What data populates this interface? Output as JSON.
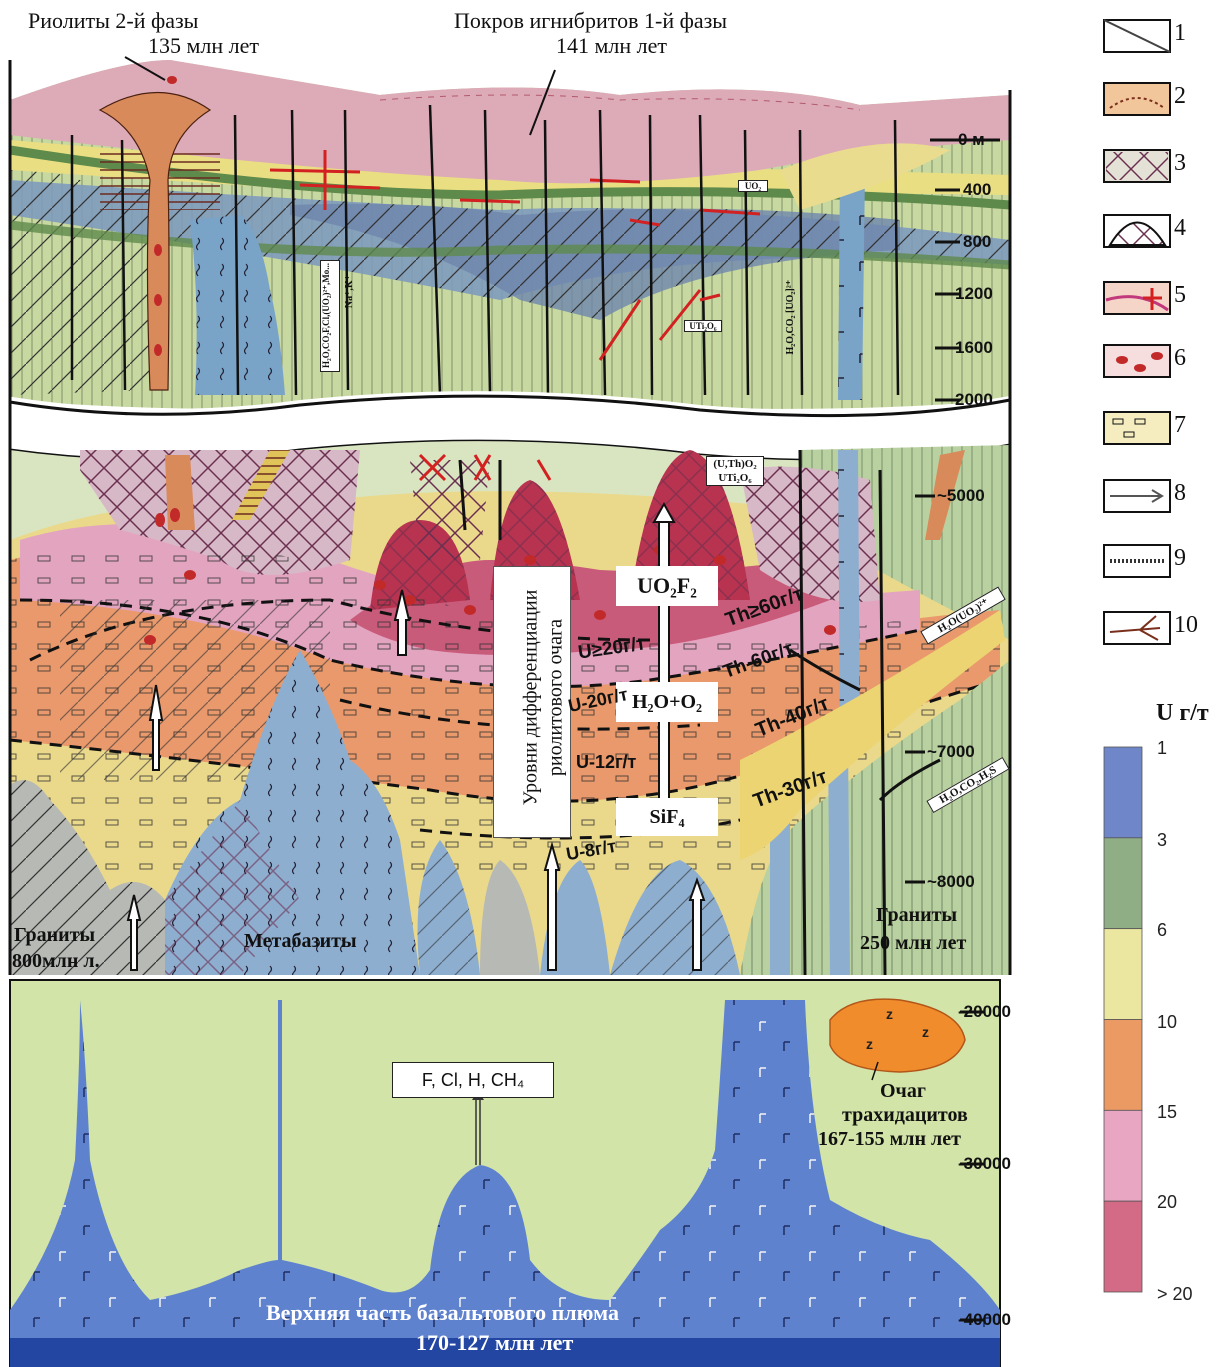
{
  "top_labels": {
    "rhyolites": "Риолиты 2-й фазы",
    "rhyolites_age": "135 млн лет",
    "ignimbrites": "Покров игнибритов 1-й фазы",
    "ignimbrites_age": "141 млн лет"
  },
  "depth_marks": [
    "0 м",
    "400",
    "800",
    "1200",
    "1600",
    "2000",
    "~5000",
    "~7000",
    "~8000",
    "-20000",
    "-30000",
    "-40000"
  ],
  "formulas": {
    "uo2f2": "UO₂F₂",
    "h2o_o2": "H₂O+O₂",
    "sif4": "SiF₄",
    "f_cl": "F, Cl, H, CH₄",
    "uth_o2": "(U,Th)O₂",
    "uti2o6": "UTi₂O₆",
    "h2o_uo2": "H₂O(UO₂)²⁺",
    "h2o_co2_h2s": "H₂O,CO₂,H₂S",
    "uti2o6_upper": "UTi₂O₆",
    "uo2_upper": "UO₂",
    "h2o_co2_f_cl": "H₂O,CO₂F,Cl,(UO₂)²⁺,Mo...",
    "na_k": "Na⁺,K⁺",
    "h2o_co2_uo2": "H₂O,CO₂ [UO₂]²⁺"
  },
  "vertical_label": {
    "line1": "Уровни дифференциации",
    "line2": "риолитового очага"
  },
  "grade_labels": {
    "u20": "U≥20г/т",
    "u20b": "U-20г/т",
    "u12": "U-12г/т",
    "u8": "U-8г/т",
    "th60a": "Th≥60г/т",
    "th60b": "Th-60г/т",
    "th40": "Th-40г/т",
    "th30": "Th-30г/т"
  },
  "rock_labels": {
    "granites_800": "Граниты",
    "granites_800_age": "800млн л.",
    "metabasites": "Метабазиты",
    "granites_250": "Граниты",
    "granites_250_age": "250 млн лет",
    "trachydacite_1": "Очаг",
    "trachydacite_2": "трахидацитов",
    "trachydacite_3": "167-155 млн лет",
    "plume_1": "Верхняя часть базальтового плюма",
    "plume_2": "170-127 млн лет"
  },
  "legend": {
    "items": [
      "1",
      "2",
      "3",
      "4",
      "5",
      "6",
      "7",
      "8",
      "9",
      "10"
    ],
    "scale_title": "U г/т",
    "scale_values": [
      "1",
      "3",
      "6",
      "10",
      "15",
      "20",
      "> 20"
    ],
    "scale_colors": [
      "#6f87c8",
      "#8fae85",
      "#ece7a0",
      "#ec9a63",
      "#e8a6c3",
      "#d46b86"
    ]
  }
}
